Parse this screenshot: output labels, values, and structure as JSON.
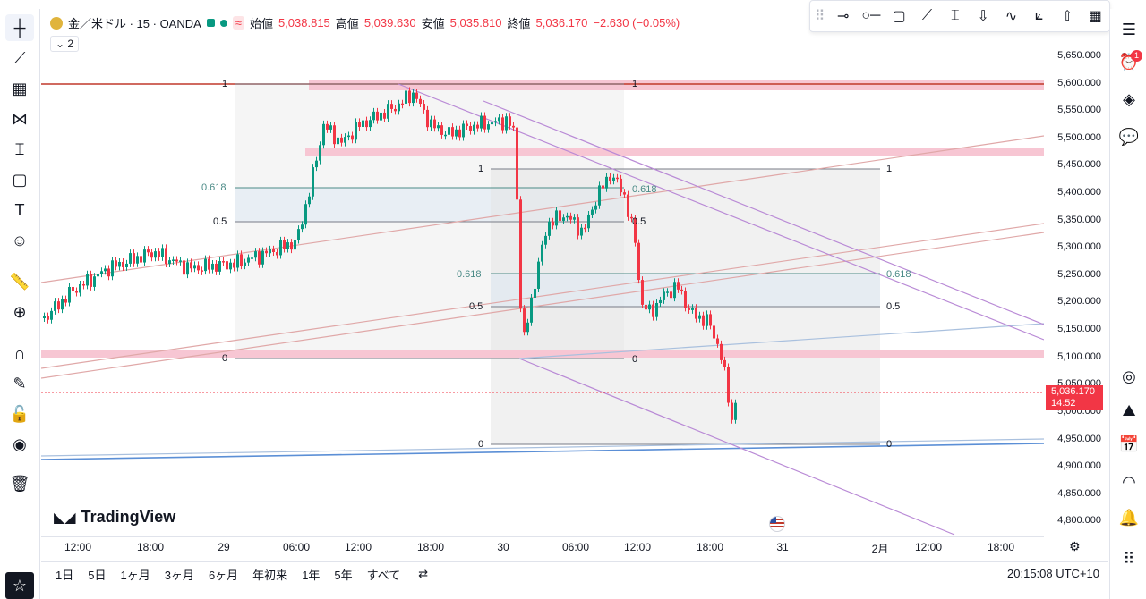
{
  "legend": {
    "symbol": "金／米ドル · 15 · OANDA",
    "open_label": "始値",
    "open": "5,038.815",
    "high_label": "高値",
    "high": "5,039.630",
    "low_label": "安値",
    "low": "5,035.810",
    "close_label": "終値",
    "close": "5,036.170",
    "change": "−2.630 (−0.05%)",
    "indicator_count": "2"
  },
  "price_axis": [
    "5,650.000",
    "5,600.000",
    "5,550.000",
    "5,500.000",
    "5,450.000",
    "5,400.000",
    "5,350.000",
    "5,300.000",
    "5,250.000",
    "5,200.000",
    "5,150.000",
    "5,100.000",
    "5,050.000",
    "5,000.000",
    "4,950.000",
    "4,900.000",
    "4,850.000",
    "4,800.000"
  ],
  "last_price": {
    "value": "5,036.170",
    "countdown": "14:52"
  },
  "time_axis": [
    "12:00",
    "18:00",
    "29",
    "06:00",
    "12:00",
    "18:00",
    "30",
    "06:00",
    "12:00",
    "18:00",
    "31",
    "2月",
    "12:00",
    "18:00"
  ],
  "fib_labels": {
    "a": [
      "1",
      "0.618",
      "0.5",
      "0"
    ],
    "b": [
      "1",
      "0.618",
      "0.5",
      "0"
    ],
    "c": [
      "1",
      "0.618",
      "0.5",
      "0"
    ],
    "d": [
      "1",
      "0.618",
      "0.5",
      "0"
    ]
  },
  "bottom_ranges": [
    "1日",
    "5日",
    "1ヶ月",
    "3ヶ月",
    "6ヶ月",
    "年初来",
    "1年",
    "5年",
    "すべて"
  ],
  "clock": "20:15:08 UTC+10",
  "logo": "TradingView",
  "notification_count": "1",
  "colors": {
    "down": "#f23645",
    "up": "#089981",
    "zone": "#f7c6d3",
    "channel": "#b98ad6"
  }
}
